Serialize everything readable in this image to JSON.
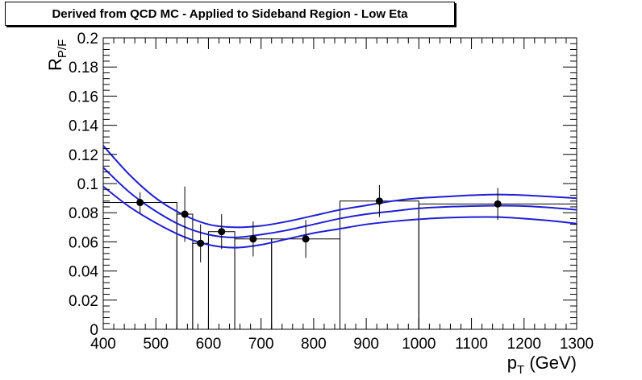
{
  "chart_data": {
    "type": "scatter",
    "title": "Derived from QCD MC - Applied to Sideband Region - Low Eta",
    "xlabel": {
      "main": "p",
      "sub": "T",
      "rest": " (GeV)"
    },
    "ylabel": {
      "main": "R",
      "sub": "P/F"
    },
    "xlim": [
      400,
      1300
    ],
    "ylim": [
      0,
      0.2
    ],
    "x_ticks": [
      "400",
      "500",
      "600",
      "700",
      "800",
      "900",
      "1000",
      "1100",
      "1200",
      "1300"
    ],
    "y_ticks": [
      "0",
      "0.02",
      "0.04",
      "0.06",
      "0.08",
      "0.1",
      "0.12",
      "0.14",
      "0.16",
      "0.18",
      "0.2"
    ],
    "grid": false,
    "histogram_bins": [
      {
        "x_low": 400,
        "x_high": 540,
        "value": 0.087
      },
      {
        "x_low": 540,
        "x_high": 570,
        "value": 0.079
      },
      {
        "x_low": 570,
        "x_high": 600,
        "value": 0.059
      },
      {
        "x_low": 600,
        "x_high": 650,
        "value": 0.067
      },
      {
        "x_low": 650,
        "x_high": 720,
        "value": 0.062
      },
      {
        "x_low": 720,
        "x_high": 850,
        "value": 0.062
      },
      {
        "x_low": 850,
        "x_high": 1000,
        "value": 0.088
      },
      {
        "x_low": 1000,
        "x_high": 1300,
        "value": 0.086
      }
    ],
    "points": [
      {
        "x": 470,
        "y": 0.087,
        "y_err": 0.007
      },
      {
        "x": 555,
        "y": 0.079,
        "y_err": 0.019
      },
      {
        "x": 585,
        "y": 0.059,
        "y_err": 0.013
      },
      {
        "x": 625,
        "y": 0.067,
        "y_err": 0.012
      },
      {
        "x": 685,
        "y": 0.062,
        "y_err": 0.012
      },
      {
        "x": 785,
        "y": 0.062,
        "y_err": 0.013
      },
      {
        "x": 925,
        "y": 0.088,
        "y_err": 0.011
      },
      {
        "x": 1150,
        "y": 0.086,
        "y_err": 0.011
      }
    ],
    "series": [
      {
        "role": "fit-upper",
        "color": "#1f1fd6",
        "x": [
          400,
          450,
          500,
          550,
          600,
          650,
          700,
          750,
          800,
          850,
          900,
          950,
          1000,
          1050,
          1100,
          1150,
          1200,
          1250,
          1300
        ],
        "y": [
          0.126,
          0.106,
          0.09,
          0.079,
          0.072,
          0.07,
          0.071,
          0.074,
          0.078,
          0.082,
          0.085,
          0.088,
          0.09,
          0.091,
          0.092,
          0.0925,
          0.092,
          0.091,
          0.09
        ]
      },
      {
        "role": "fit-central",
        "color": "#1f1fd6",
        "x": [
          400,
          450,
          500,
          550,
          600,
          650,
          700,
          750,
          800,
          850,
          900,
          950,
          1000,
          1050,
          1100,
          1150,
          1200,
          1250,
          1300
        ],
        "y": [
          0.111,
          0.094,
          0.081,
          0.071,
          0.065,
          0.063,
          0.065,
          0.068,
          0.072,
          0.076,
          0.079,
          0.081,
          0.083,
          0.084,
          0.0845,
          0.0848,
          0.0845,
          0.0835,
          0.082
        ]
      },
      {
        "role": "fit-lower",
        "color": "#1f1fd6",
        "x": [
          400,
          450,
          500,
          550,
          600,
          650,
          700,
          750,
          800,
          850,
          900,
          950,
          1000,
          1050,
          1100,
          1150,
          1200,
          1250,
          1300
        ],
        "y": [
          0.098,
          0.084,
          0.073,
          0.064,
          0.058,
          0.056,
          0.058,
          0.062,
          0.066,
          0.069,
          0.072,
          0.074,
          0.0755,
          0.0765,
          0.077,
          0.077,
          0.076,
          0.0745,
          0.0725
        ]
      }
    ]
  }
}
